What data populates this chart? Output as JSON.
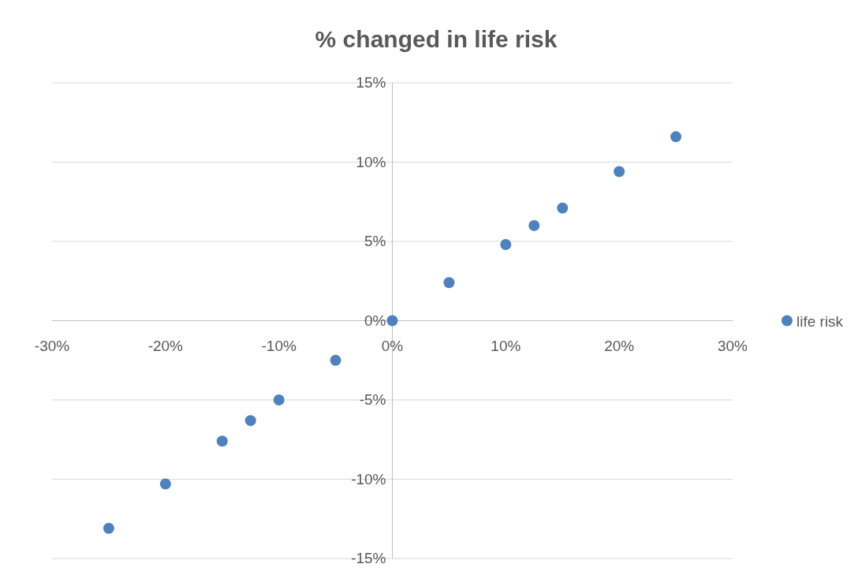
{
  "chart_data": {
    "type": "scatter",
    "title": "% changed in life risk",
    "x": [
      -25,
      -20,
      -15,
      -12.5,
      -10,
      -5,
      0,
      5,
      10,
      12.5,
      15,
      20,
      25
    ],
    "series": [
      {
        "name": "life risk",
        "color": "#4f81bd",
        "values": [
          -13.1,
          -10.3,
          -7.6,
          -6.3,
          -5.0,
          -2.5,
          0,
          2.4,
          4.8,
          6.0,
          7.1,
          9.4,
          11.6
        ]
      }
    ],
    "xlim": [
      -30,
      30
    ],
    "xticks": [
      {
        "value": -30,
        "label": "-30%"
      },
      {
        "value": -20,
        "label": "-20%"
      },
      {
        "value": -10,
        "label": "-10%"
      },
      {
        "value": 0,
        "label": "0%"
      },
      {
        "value": 10,
        "label": "10%"
      },
      {
        "value": 20,
        "label": "20%"
      },
      {
        "value": 30,
        "label": "30%"
      }
    ],
    "ylim": [
      -15,
      15
    ],
    "yticks": [
      {
        "value": -15,
        "label": "-15%"
      },
      {
        "value": -10,
        "label": "-10%"
      },
      {
        "value": -5,
        "label": "-5%"
      },
      {
        "value": 0,
        "label": "0%"
      },
      {
        "value": 5,
        "label": "5%"
      },
      {
        "value": 10,
        "label": "10%"
      },
      {
        "value": 15,
        "label": "15%"
      }
    ],
    "grid": "y",
    "legend": "right",
    "marker": "circle"
  }
}
